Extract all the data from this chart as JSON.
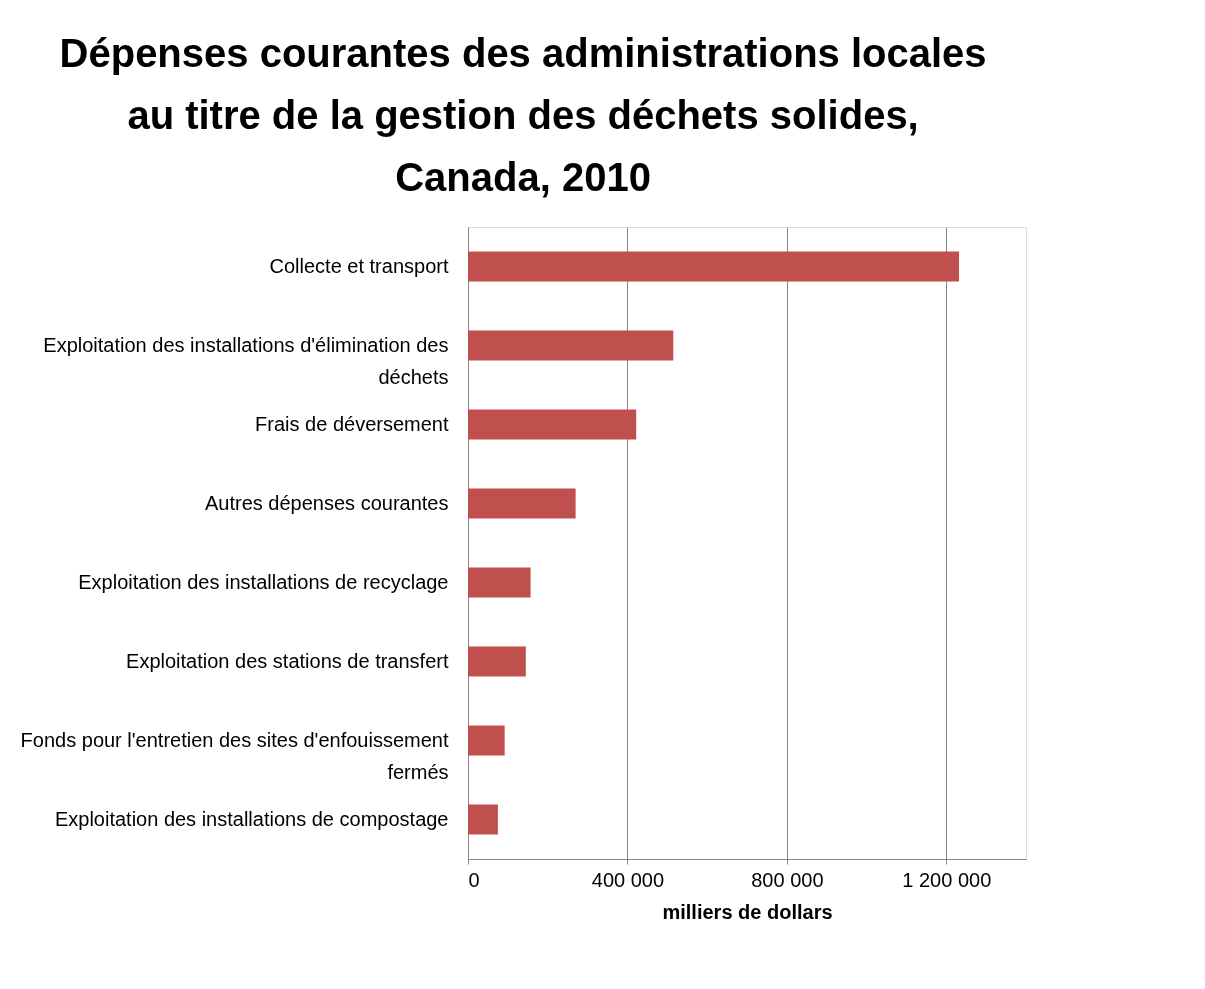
{
  "chart_data": {
    "type": "bar",
    "orientation": "horizontal",
    "title": "Dépenses courantes des administrations locales au titre de la gestion des déchets solides, Canada, 2010",
    "xlabel": "milliers de dollars",
    "categories": [
      "Collecte et transport",
      "Exploitation des installations d'élimination des déchets",
      "Frais de déversement",
      "Autres dépenses courantes",
      "Exploitation des installations de recyclage",
      "Exploitation des stations de transfert",
      "Fonds pour l'entretien des sites d'enfouissement fermés",
      "Exploitation des installations de compostage"
    ],
    "values": [
      1232000,
      515000,
      422000,
      270000,
      157000,
      145000,
      92000,
      75000
    ],
    "color": "#c0504d",
    "xlim": [
      0,
      1400000
    ],
    "xticks": [
      {
        "value": 0,
        "label": "0"
      },
      {
        "value": 400000,
        "label": "400 000"
      },
      {
        "value": 800000,
        "label": "800 000"
      },
      {
        "value": 1200000,
        "label": "1 200 000"
      }
    ],
    "grid": "x"
  }
}
